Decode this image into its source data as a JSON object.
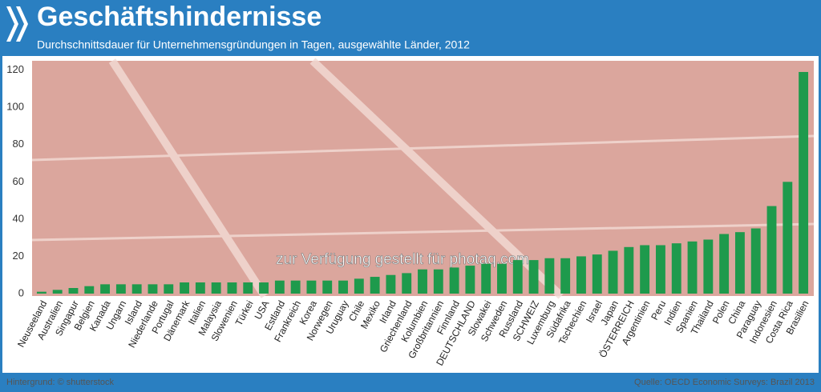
{
  "chart_data": {
    "type": "bar",
    "title": "Geschäftshindernisse",
    "subtitle": "Durchschnittsdauer für Unternehmensgründungen in Tagen, ausgewählte Länder, 2012",
    "categories": [
      "Neuseeland",
      "Australien",
      "Singapur",
      "Belgien",
      "Kanada",
      "Ungarn",
      "Island",
      "Niederlande",
      "Portugal",
      "Dänemark",
      "Italien",
      "Malaysia",
      "Slowenien",
      "Türkei",
      "USA",
      "Estland",
      "Frankreich",
      "Korea",
      "Norwegen",
      "Uruguay",
      "Chile",
      "Mexiko",
      "Irland",
      "Griechenland",
      "Kolumbien",
      "Großbritannien",
      "Finnland",
      "DEUTSCHLAND",
      "Slowakei",
      "Schweden",
      "Russland",
      "SCHWEIZ",
      "Luxemburg",
      "Südafrika",
      "Tschechien",
      "Israel",
      "Japan",
      "ÖSTERREICH",
      "Argentinien",
      "Peru",
      "Indien",
      "Spanien",
      "Thailand",
      "Polen",
      "China",
      "Paraguay",
      "Indonesien",
      "Costa Rica",
      "Brasilien"
    ],
    "values": [
      1,
      2,
      3,
      4,
      5,
      5,
      5,
      5,
      5,
      6,
      6,
      6,
      6,
      6,
      6,
      7,
      7,
      7,
      7,
      7,
      8,
      9,
      10,
      11,
      13,
      13,
      14,
      15,
      16,
      16,
      18,
      18,
      19,
      19,
      20,
      21,
      23,
      25,
      26,
      26,
      27,
      28,
      29,
      32,
      33,
      35,
      47,
      60,
      119
    ],
    "color": "#1e9a4c",
    "ylim": [
      0,
      125
    ],
    "yticks": [
      0,
      20,
      40,
      60,
      80,
      100,
      120
    ],
    "grid": false,
    "watermark": "zur Verfügung gestellt für photaq.com",
    "background_credit": "Hintergrund: © shutterstock",
    "source": "Quelle: OECD Economic Surveys: Brazil 2013"
  }
}
